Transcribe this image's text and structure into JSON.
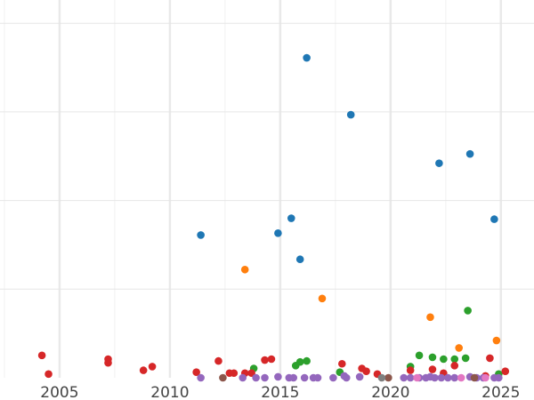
{
  "chart_data": {
    "type": "scatter",
    "title": "",
    "xlabel": "",
    "ylabel": "",
    "grid": true,
    "legend": "none",
    "xlim": [
      2002.3,
      2026.5
    ],
    "ylim": [
      0,
      405
    ],
    "x_ticks": [
      2005,
      2010,
      2015,
      2020,
      2025
    ],
    "x_tick_labels": [
      "2005",
      "2010",
      "2015",
      "2020",
      "2025"
    ],
    "y_gridlines": [
      95,
      190,
      285,
      380
    ],
    "y_tick_labels": [],
    "series": [
      {
        "color": "#1f77b4",
        "points": [
          [
            2016.2,
            343
          ],
          [
            2018.2,
            282
          ],
          [
            2022.2,
            230
          ],
          [
            2023.6,
            240
          ],
          [
            2024.7,
            170
          ],
          [
            2011.4,
            153
          ],
          [
            2014.9,
            155
          ],
          [
            2015.5,
            171
          ],
          [
            2015.9,
            127
          ]
        ]
      },
      {
        "color": "#ff7f0e",
        "points": [
          [
            2013.4,
            116
          ],
          [
            2016.9,
            85
          ],
          [
            2021.8,
            65
          ],
          [
            2023.1,
            32
          ],
          [
            2024.8,
            40
          ]
        ]
      },
      {
        "color": "#2ca02c",
        "points": [
          [
            2013.8,
            10
          ],
          [
            2015.7,
            13
          ],
          [
            2015.9,
            17
          ],
          [
            2016.2,
            18
          ],
          [
            2017.7,
            6
          ],
          [
            2020.9,
            12
          ],
          [
            2021.3,
            24
          ],
          [
            2021.9,
            22
          ],
          [
            2022.4,
            20
          ],
          [
            2022.9,
            20
          ],
          [
            2023.4,
            21
          ],
          [
            2023.5,
            72
          ],
          [
            2024.9,
            4
          ]
        ]
      },
      {
        "color": "#d62728",
        "points": [
          [
            2004.2,
            24
          ],
          [
            2004.5,
            4
          ],
          [
            2007.2,
            20
          ],
          [
            2007.2,
            16
          ],
          [
            2008.8,
            8
          ],
          [
            2009.2,
            12
          ],
          [
            2011.2,
            6
          ],
          [
            2012.2,
            18
          ],
          [
            2012.7,
            5
          ],
          [
            2012.9,
            5
          ],
          [
            2013.4,
            5
          ],
          [
            2013.7,
            5
          ],
          [
            2014.3,
            19
          ],
          [
            2014.6,
            20
          ],
          [
            2017.8,
            15
          ],
          [
            2018.7,
            10
          ],
          [
            2018.9,
            7
          ],
          [
            2019.4,
            4
          ],
          [
            2020.9,
            8
          ],
          [
            2021.9,
            9
          ],
          [
            2022.4,
            5
          ],
          [
            2022.9,
            13
          ],
          [
            2024.3,
            2
          ],
          [
            2024.5,
            21
          ],
          [
            2025.2,
            7
          ]
        ]
      },
      {
        "color": "#9467bd",
        "points": [
          [
            2011.4,
            0
          ],
          [
            2013.3,
            0
          ],
          [
            2013.9,
            0
          ],
          [
            2014.3,
            0
          ],
          [
            2014.9,
            1
          ],
          [
            2015.4,
            0
          ],
          [
            2015.6,
            0
          ],
          [
            2016.1,
            0
          ],
          [
            2016.5,
            0
          ],
          [
            2016.7,
            0
          ],
          [
            2017.4,
            0
          ],
          [
            2017.9,
            2
          ],
          [
            2018.0,
            0
          ],
          [
            2018.6,
            1
          ],
          [
            2020.6,
            0
          ],
          [
            2020.9,
            0
          ],
          [
            2021.3,
            0
          ],
          [
            2021.6,
            0
          ],
          [
            2021.8,
            1
          ],
          [
            2022.0,
            0
          ],
          [
            2022.3,
            0
          ],
          [
            2022.6,
            0
          ],
          [
            2022.9,
            0
          ],
          [
            2023.6,
            1
          ],
          [
            2023.9,
            0
          ],
          [
            2024.2,
            0
          ],
          [
            2024.7,
            0
          ],
          [
            2024.9,
            0
          ]
        ]
      },
      {
        "color": "#8c564b",
        "points": [
          [
            2012.4,
            0
          ],
          [
            2019.9,
            0
          ],
          [
            2023.8,
            0
          ]
        ]
      },
      {
        "color": "#e377c2",
        "points": [
          [
            2021.2,
            0
          ],
          [
            2023.2,
            0
          ],
          [
            2024.3,
            0
          ]
        ]
      },
      {
        "color": "#7f7f7f",
        "points": [
          [
            2019.6,
            0
          ]
        ]
      }
    ]
  }
}
